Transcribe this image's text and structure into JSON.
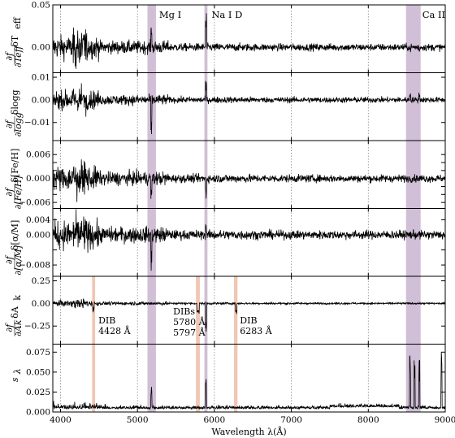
{
  "chart_data": {
    "type": "line",
    "xlabel": "Wavelength λ(Å)",
    "xlim": [
      3900,
      9000
    ],
    "x_ticks": [
      4000,
      5000,
      6000,
      7000,
      8000,
      9000
    ],
    "x_tick_labels": [
      "4000",
      "5000",
      "6000",
      "7000",
      "8000",
      "9000"
    ],
    "vertical_dotted_lines": [
      4000,
      5000,
      6000,
      7000,
      8000,
      9000
    ],
    "series_color": "#000000",
    "line_regions": [
      {
        "label": "Mg I",
        "x_range": [
          5130,
          5240
        ],
        "color": "#a98bb5"
      },
      {
        "label": "Na I D",
        "x_range": [
          5870,
          5910
        ],
        "color": "#a98bb5"
      },
      {
        "label": "Ca II",
        "x_range": [
          8490,
          8680
        ],
        "color": "#a98bb5"
      }
    ],
    "dib_regions": [
      {
        "x_range": [
          4410,
          4450
        ],
        "color": "#e8a080"
      },
      {
        "x_range": [
          5760,
          5810
        ],
        "color": "#e8a080"
      },
      {
        "x_range": [
          6255,
          6300
        ],
        "color": "#e8a080"
      }
    ],
    "dib_labels": [
      {
        "lines": [
          "DIB",
          "4428 Å"
        ]
      },
      {
        "lines": [
          "DIBs",
          "5780 Å",
          "5797 Å"
        ]
      },
      {
        "lines": [
          "DIB",
          "6283 Å"
        ]
      }
    ],
    "panels": [
      {
        "ylabel_parts": [
          "∂f",
          "∂Teff",
          "δT",
          "eff"
        ],
        "ylim": [
          -0.03,
          0.05
        ],
        "y_ticks": [
          0.0,
          0.05
        ],
        "y_tick_labels": [
          "0.00",
          "0.05"
        ],
        "noise_scale": 0.004,
        "features": [
          [
            4150,
            4350,
            0.03
          ],
          [
            5180,
            0.03
          ],
          [
            5890,
            0.04
          ],
          [
            8542,
            -0.005
          ],
          [
            8662,
            -0.004
          ]
        ]
      },
      {
        "ylabel_parts": [
          "∂f",
          "∂logg",
          "δlogg"
        ],
        "ylim": [
          -0.018,
          0.012
        ],
        "y_ticks": [
          -0.01,
          0.0,
          0.01
        ],
        "y_tick_labels": [
          "−0.01",
          "0.00",
          "0.01"
        ],
        "noise_scale": 0.0012,
        "features": [
          [
            4150,
            4350,
            0.008
          ],
          [
            5180,
            -0.015
          ],
          [
            5890,
            0.008
          ],
          [
            8542,
            0.003
          ],
          [
            8662,
            0.003
          ]
        ]
      },
      {
        "ylabel_parts": [
          "∂f",
          "∂[Fe/H]",
          "δ[Fe/H]"
        ],
        "ylim": [
          -0.0075,
          0.0095
        ],
        "y_ticks": [
          -0.006,
          -0.004,
          -0.002,
          0.0,
          0.002,
          0.004,
          0.006
        ],
        "y_tick_labels": [
          "−0.006",
          "",
          "",
          "0.000",
          "",
          "",
          "0.006"
        ],
        "noise_scale": 0.0009,
        "features": [
          [
            4150,
            4350,
            0.006
          ],
          [
            5180,
            -0.006
          ],
          [
            5890,
            -0.005
          ]
        ]
      },
      {
        "ylabel_parts": [
          "∂f",
          "∂[α/M]",
          "δ[α/M]"
        ],
        "ylim": [
          -0.011,
          0.007
        ],
        "y_ticks": [
          -0.008,
          -0.004,
          0.0,
          0.004
        ],
        "y_tick_labels": [
          "−0.008",
          "",
          "0.000",
          "0.004"
        ],
        "noise_scale": 0.0011,
        "features": [
          [
            4150,
            4350,
            0.005
          ],
          [
            5180,
            -0.01
          ],
          [
            5890,
            0.003
          ]
        ]
      },
      {
        "ylabel_parts": [
          "∂f",
          "∂Ak",
          "δA",
          "k"
        ],
        "ylim": [
          -0.45,
          0.3
        ],
        "y_ticks": [
          -0.25,
          0.0,
          0.25
        ],
        "y_tick_labels": [
          "−0.25",
          "0.00",
          "0.25"
        ],
        "noise_scale": 0.01,
        "features": [
          [
            4428,
            -0.08
          ],
          [
            5780,
            -0.1
          ],
          [
            5797,
            -0.12
          ],
          [
            5890,
            -0.35
          ],
          [
            6283,
            -0.12
          ],
          [
            4150,
            4350,
            0.08
          ]
        ]
      },
      {
        "ylabel_parts": [
          "s",
          "λ"
        ],
        "ylim": [
          0.0,
          0.085
        ],
        "y_ticks": [
          0.0,
          0.025,
          0.05,
          0.075
        ],
        "y_tick_labels": [
          "0.000",
          "0.025",
          "0.050",
          "0.075"
        ],
        "noise_scale": 0.004,
        "features": [
          [
            5180,
            0.03
          ],
          [
            5890,
            0.035
          ],
          [
            8542,
            0.07
          ],
          [
            8600,
            0.06
          ],
          [
            8662,
            0.065
          ],
          [
            8950,
            0.077
          ]
        ]
      }
    ]
  }
}
